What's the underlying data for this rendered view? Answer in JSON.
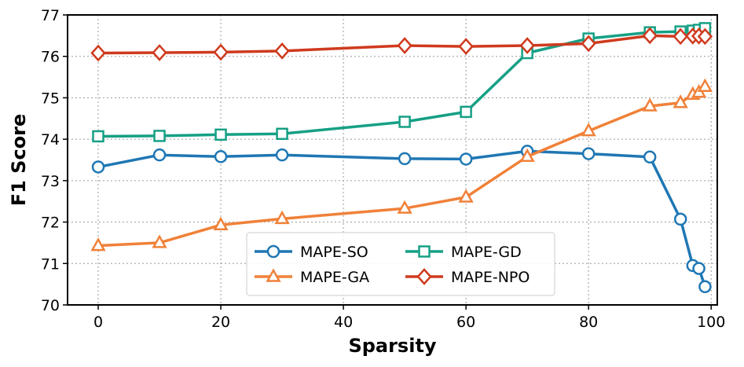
{
  "chart_data": {
    "type": "line",
    "xlabel": "Sparsity",
    "ylabel": "F1 Score",
    "xlim": [
      -5,
      101
    ],
    "ylim": [
      70,
      77
    ],
    "xticks": [
      0,
      20,
      40,
      60,
      80,
      100
    ],
    "yticks": [
      70,
      71,
      72,
      73,
      74,
      75,
      76,
      77
    ],
    "grid": true,
    "legend_position": "bottom-center",
    "legend_columns": 2,
    "series": [
      {
        "name": "MAPE-SO",
        "color": "#1f77b4",
        "marker": "circle",
        "x": [
          0,
          10,
          20,
          30,
          50,
          60,
          70,
          80,
          90,
          95,
          97,
          98,
          99
        ],
        "y": [
          73.33,
          73.62,
          73.58,
          73.62,
          73.53,
          73.52,
          73.71,
          73.65,
          73.57,
          72.07,
          70.95,
          70.88,
          70.44
        ]
      },
      {
        "name": "MAPE-GA",
        "color": "#f08139",
        "marker": "triangle",
        "x": [
          0,
          10,
          20,
          30,
          50,
          60,
          70,
          80,
          90,
          95,
          97,
          98,
          99
        ],
        "y": [
          71.43,
          71.5,
          71.93,
          72.08,
          72.33,
          72.6,
          73.58,
          74.2,
          74.8,
          74.88,
          75.08,
          75.13,
          75.27
        ]
      },
      {
        "name": "MAPE-GD",
        "color": "#16a085",
        "marker": "square",
        "x": [
          0,
          10,
          20,
          30,
          50,
          60,
          70,
          80,
          90,
          95,
          97,
          98,
          99
        ],
        "y": [
          74.07,
          74.08,
          74.11,
          74.13,
          74.42,
          74.66,
          76.08,
          76.43,
          76.58,
          76.6,
          76.62,
          76.64,
          76.68
        ]
      },
      {
        "name": "MAPE-NPO",
        "color": "#cf3a1e",
        "marker": "diamond",
        "x": [
          0,
          10,
          20,
          30,
          50,
          60,
          70,
          80,
          90,
          95,
          97,
          98,
          99
        ],
        "y": [
          76.08,
          76.09,
          76.1,
          76.13,
          76.26,
          76.24,
          76.26,
          76.31,
          76.5,
          76.48,
          76.49,
          76.49,
          76.48
        ]
      }
    ]
  }
}
